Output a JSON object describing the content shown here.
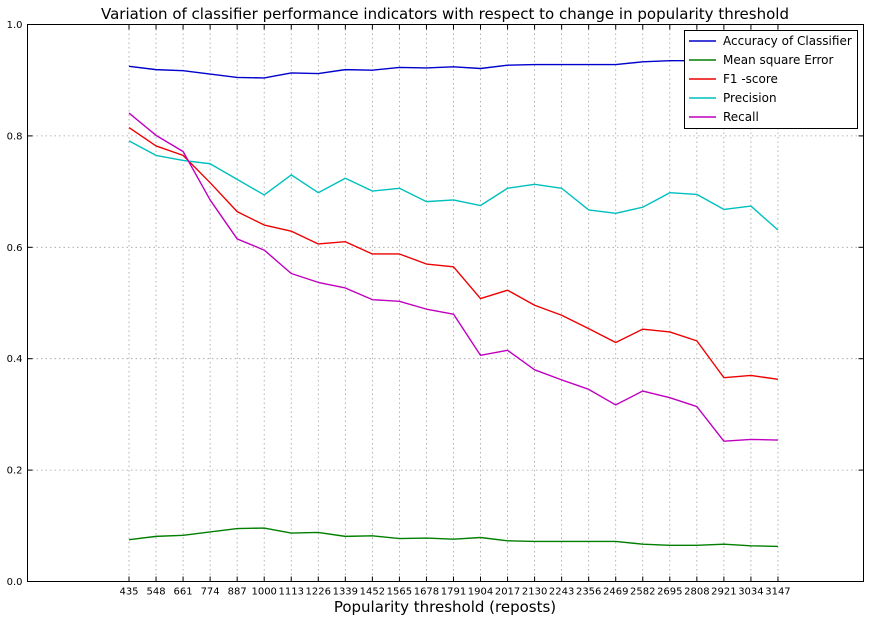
{
  "chart_data": {
    "type": "line",
    "title": "Variation of classifier performance indicators with respect to change in popularity threshold",
    "xlabel": "Popularity threshold (reposts)",
    "ylabel": "",
    "ylim": [
      0.0,
      1.0
    ],
    "yticks": [
      "0.0",
      "0.2",
      "0.4",
      "0.6",
      "0.8",
      "1.0"
    ],
    "x": [
      435,
      548,
      661,
      774,
      887,
      1000,
      1113,
      1226,
      1339,
      1452,
      1565,
      1678,
      1791,
      1904,
      2017,
      2130,
      2243,
      2356,
      2469,
      2582,
      2695,
      2808,
      2921,
      3034,
      3147
    ],
    "grid": true,
    "legend_position": "top-right",
    "series": [
      {
        "name": "Accuracy of Classifier",
        "color": "#0000cc",
        "values": [
          0.925,
          0.919,
          0.917,
          0.911,
          0.905,
          0.904,
          0.913,
          0.912,
          0.919,
          0.918,
          0.923,
          0.922,
          0.924,
          0.921,
          0.927,
          0.928,
          0.928,
          0.928,
          0.928,
          0.933,
          0.935,
          0.935,
          0.935,
          0.935,
          0.935
        ]
      },
      {
        "name": "Mean square Error",
        "color": "#007f00",
        "values": [
          0.075,
          0.081,
          0.083,
          0.089,
          0.095,
          0.096,
          0.087,
          0.088,
          0.081,
          0.082,
          0.077,
          0.078,
          0.076,
          0.079,
          0.073,
          0.072,
          0.072,
          0.072,
          0.072,
          0.067,
          0.065,
          0.065,
          0.067,
          0.064,
          0.063
        ]
      },
      {
        "name": "F1 -score",
        "color": "#ee0000",
        "values": [
          0.815,
          0.782,
          0.765,
          0.716,
          0.664,
          0.64,
          0.629,
          0.606,
          0.61,
          0.588,
          0.588,
          0.57,
          0.565,
          0.508,
          0.523,
          0.496,
          0.478,
          0.454,
          0.429,
          0.453,
          0.448,
          0.432,
          0.366,
          0.37,
          0.363
        ]
      },
      {
        "name": "Precision",
        "color": "#00bfbf",
        "values": [
          0.791,
          0.765,
          0.756,
          0.75,
          0.722,
          0.694,
          0.73,
          0.698,
          0.724,
          0.701,
          0.706,
          0.682,
          0.685,
          0.675,
          0.706,
          0.713,
          0.706,
          0.667,
          0.661,
          0.672,
          0.698,
          0.695,
          0.668,
          0.674,
          0.631
        ]
      },
      {
        "name": "Recall",
        "color": "#bf00bf",
        "values": [
          0.841,
          0.801,
          0.772,
          0.685,
          0.615,
          0.595,
          0.553,
          0.537,
          0.527,
          0.506,
          0.503,
          0.489,
          0.48,
          0.406,
          0.415,
          0.38,
          0.362,
          0.345,
          0.317,
          0.342,
          0.33,
          0.314,
          0.252,
          0.255,
          0.254
        ]
      }
    ]
  }
}
